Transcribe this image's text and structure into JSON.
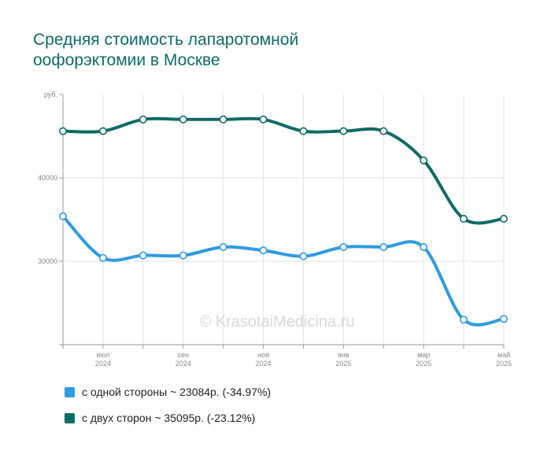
{
  "chart_data": {
    "type": "line",
    "title_lines": [
      "Средняя стоимость лапаротомной",
      "оофорэктомии  в Москве"
    ],
    "y_unit": "руб.",
    "ylim": [
      20000,
      50000
    ],
    "y_ticks": [
      {
        "value": 30000,
        "label": "30000"
      },
      {
        "value": 40000,
        "label": "40000"
      }
    ],
    "x": [
      "2024-06",
      "2024-07",
      "2024-08",
      "2024-09",
      "2024-10",
      "2024-11",
      "2024-12",
      "2025-01",
      "2025-02",
      "2025-03",
      "2025-04",
      "2025-05"
    ],
    "x_tick_labels": [
      {
        "index": 1,
        "month": "июл",
        "year": "2024"
      },
      {
        "index": 3,
        "month": "сен",
        "year": "2024"
      },
      {
        "index": 5,
        "month": "ноя",
        "year": "2024"
      },
      {
        "index": 7,
        "month": "янв",
        "year": "2025"
      },
      {
        "index": 9,
        "month": "мар",
        "year": "2025"
      },
      {
        "index": 11,
        "month": "май",
        "year": "2025"
      }
    ],
    "series": [
      {
        "name": "с двух сторон",
        "legend": "с двух сторон ~ 35095р. (-23.12%)",
        "color": "#0e6b64",
        "values": [
          45600,
          45600,
          47000,
          47000,
          47000,
          47000,
          45600,
          45600,
          45600,
          42100,
          35095,
          35095
        ]
      },
      {
        "name": "с одной стороны",
        "legend": "с одной стороны ~ 23084р. (-34.97%)",
        "color": "#2e9be0",
        "values": [
          35400,
          30400,
          30700,
          30700,
          31700,
          31300,
          30600,
          31700,
          31700,
          31700,
          23000,
          23084
        ]
      }
    ],
    "watermark": "© KrasotaiMedicina.ru",
    "grid": true,
    "legend_position": "bottom-left"
  }
}
